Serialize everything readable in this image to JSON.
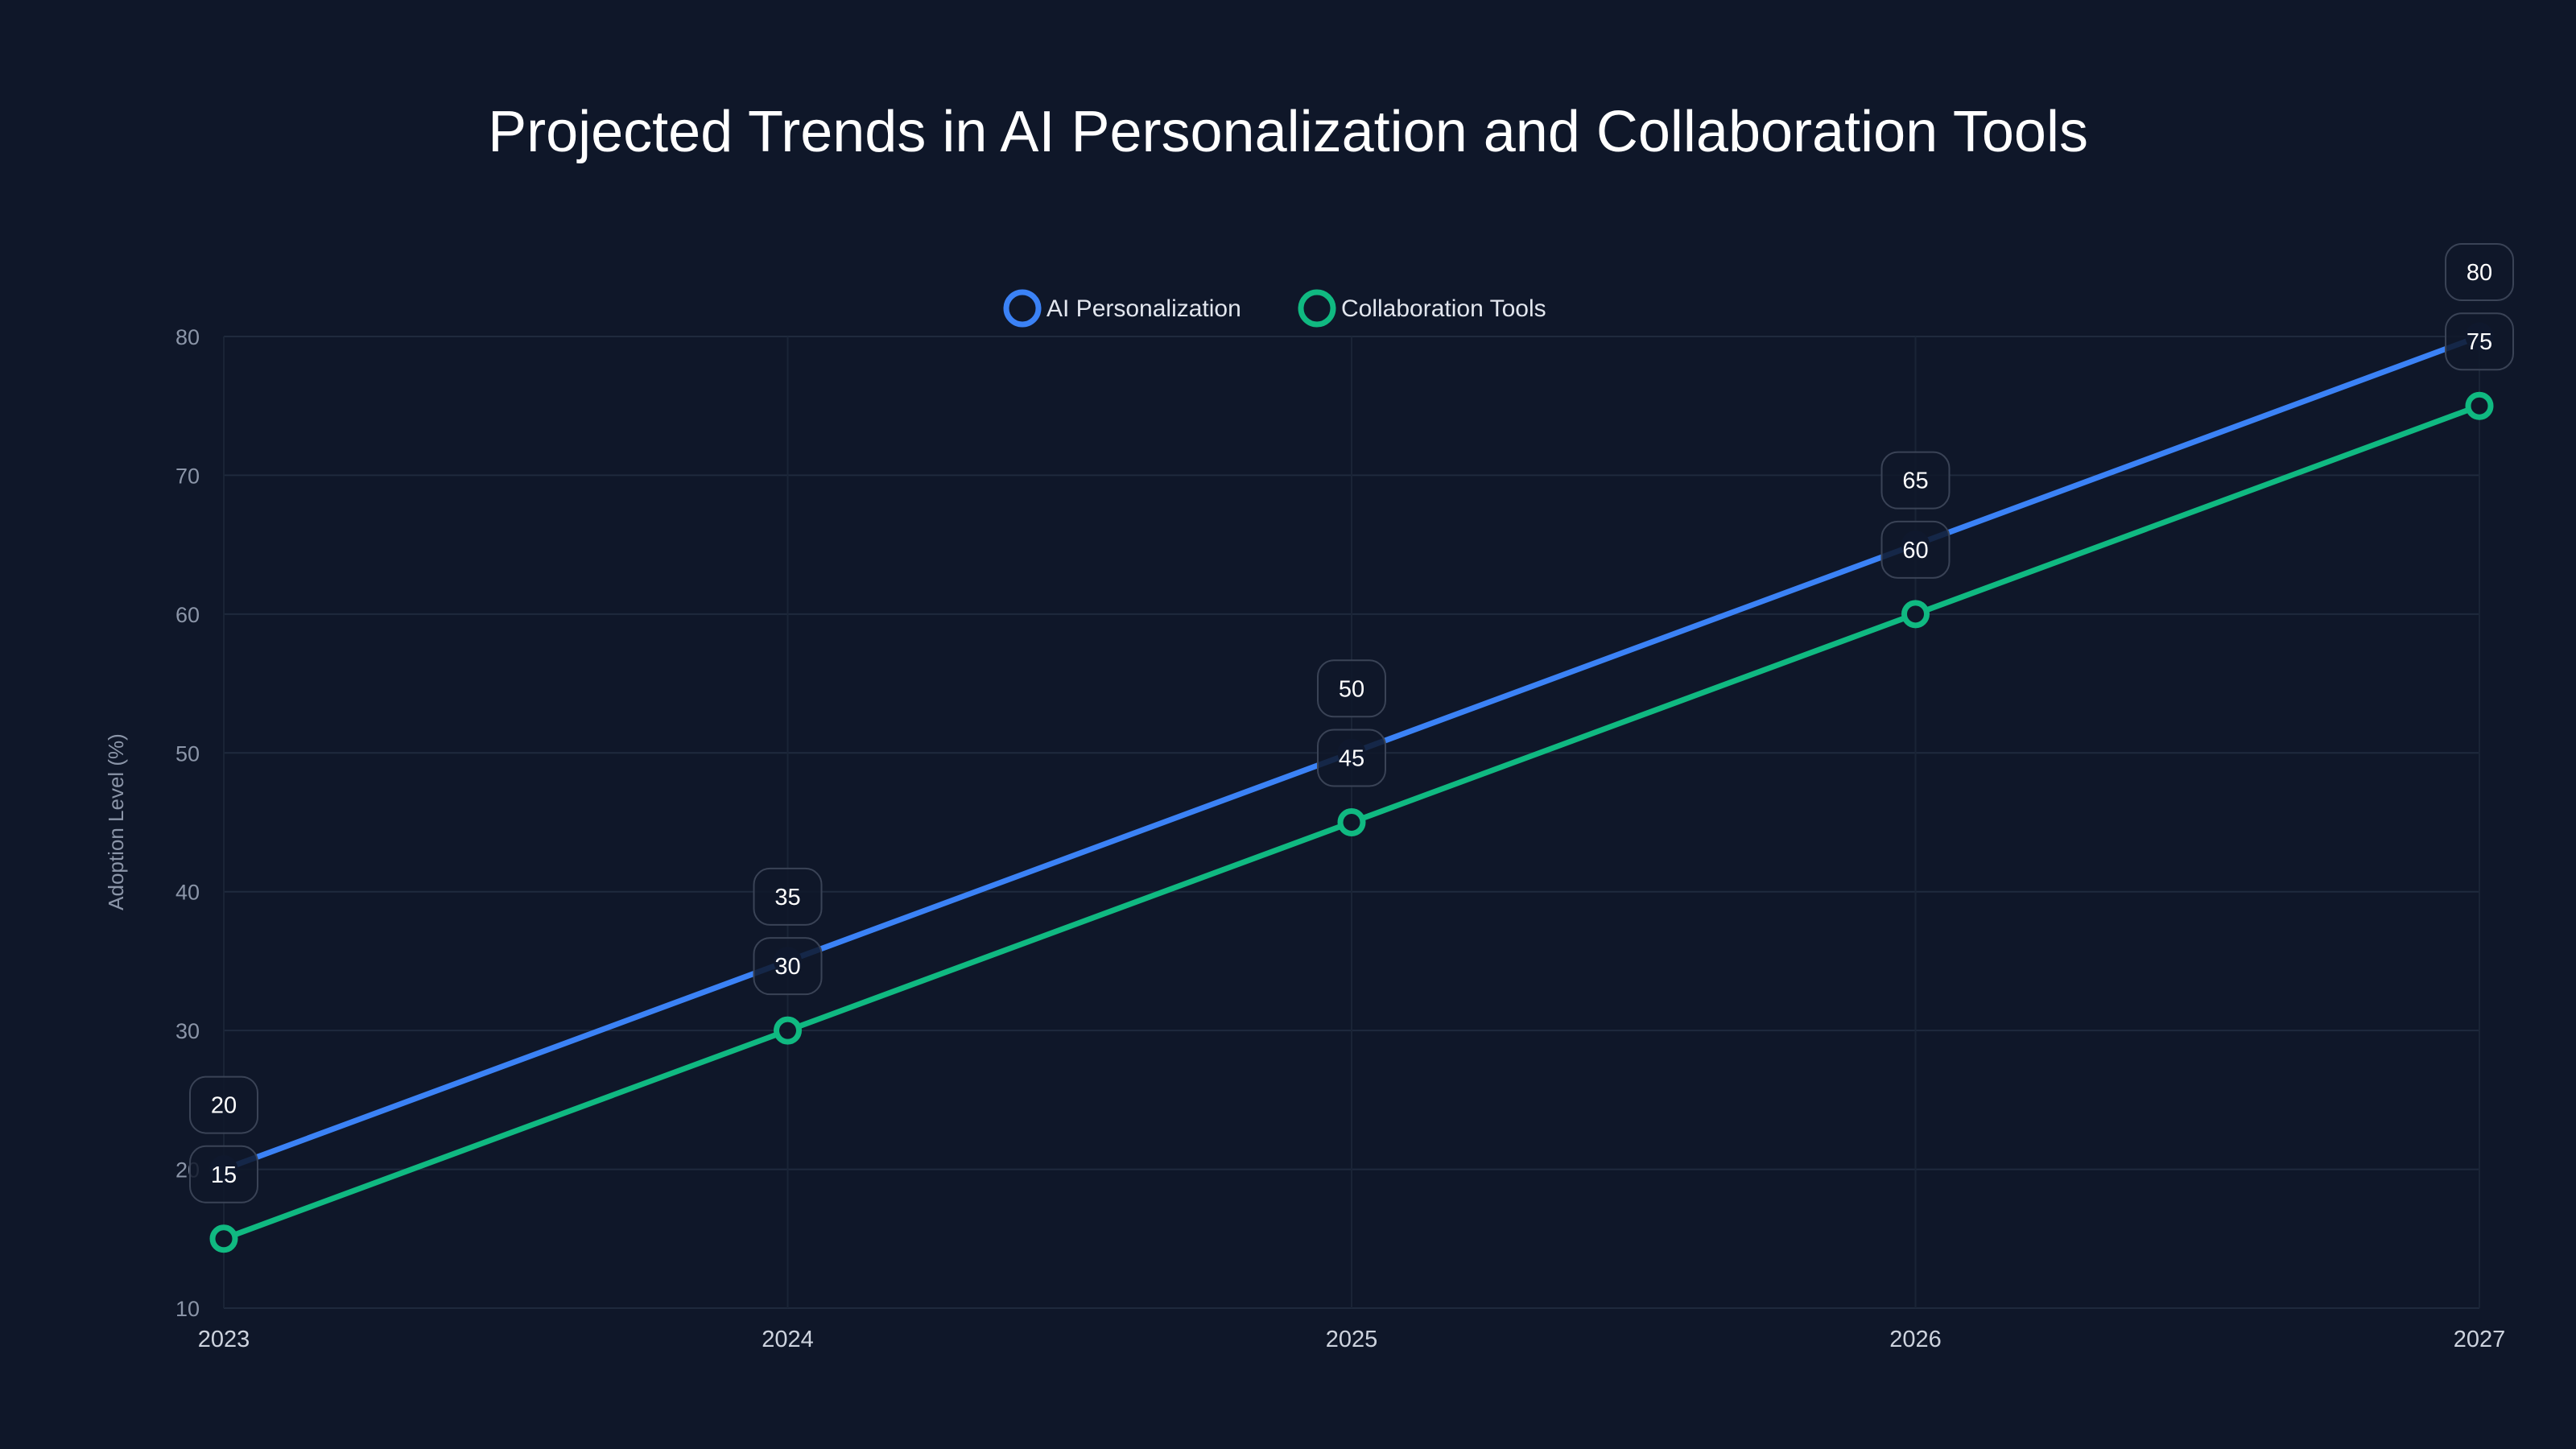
{
  "chart_data": {
    "type": "line",
    "title": "Projected Trends in AI Personalization and Collaboration Tools",
    "xlabel": "",
    "ylabel": "Adoption Level (%)",
    "x": [
      "2023",
      "2024",
      "2025",
      "2026",
      "2027"
    ],
    "ylim": [
      10,
      80
    ],
    "yticks": [
      10,
      20,
      30,
      40,
      50,
      60,
      70,
      80
    ],
    "grid": true,
    "legend_position": "top-center",
    "series": [
      {
        "name": "AI Personalization",
        "color": "#3b82f6",
        "values": [
          20,
          35,
          50,
          65,
          80
        ]
      },
      {
        "name": "Collaboration Tools",
        "color": "#10b981",
        "values": [
          15,
          30,
          45,
          60,
          75
        ]
      }
    ]
  }
}
